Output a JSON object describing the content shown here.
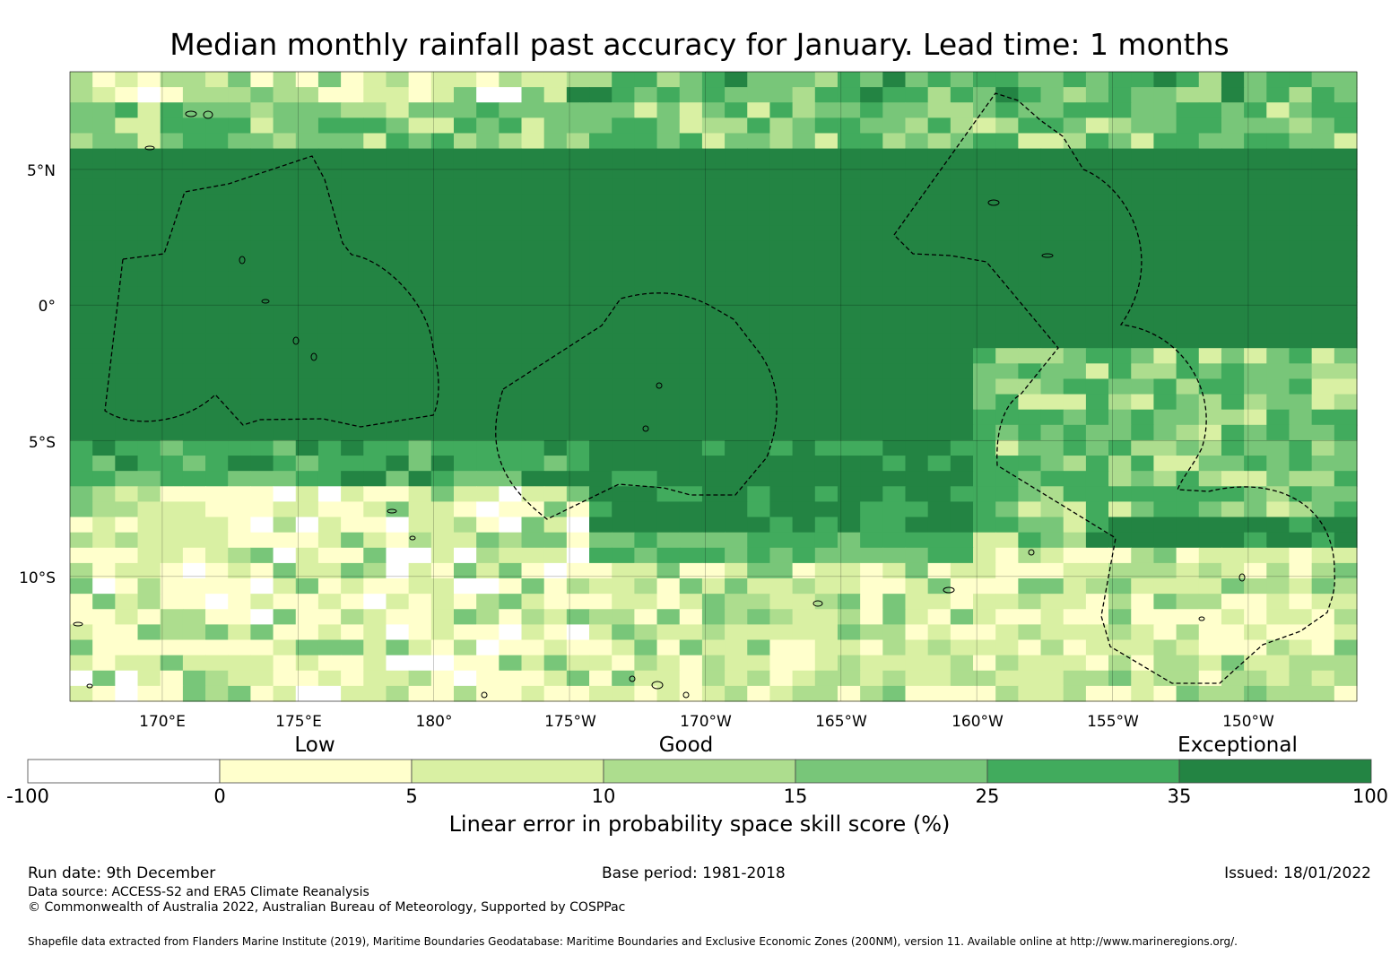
{
  "title": "Median monthly rainfall past accuracy for January. Lead time: 1 months",
  "map": {
    "lat_labels": [
      "5°N",
      "0°",
      "5°S",
      "10°S"
    ],
    "lon_labels": [
      "170°E",
      "175°E",
      "180°",
      "175°W",
      "170°W",
      "165°W",
      "160°W",
      "155°W",
      "150°W"
    ],
    "extent": {
      "lon_min": 166.6,
      "lon_max": 214.0,
      "lat_min": -14.6,
      "lat_max": 8.6
    }
  },
  "colorbar": {
    "categories": [
      "Low",
      "Good",
      "Exceptional"
    ],
    "ticks": [
      "-100",
      "0",
      "5",
      "10",
      "15",
      "25",
      "35",
      "100"
    ],
    "colors": [
      "#ffffff",
      "#ffffcc",
      "#d9f0a3",
      "#addd8e",
      "#78c679",
      "#41ab5d",
      "#238443"
    ],
    "title": "Linear error in probability space skill score (%)"
  },
  "footer": {
    "run_date": "Run date: 9th December",
    "base_period": "Base period: 1981-2018",
    "issued": "Issued: 18/01/2022",
    "data_source": "Data source: ACCESS-S2 and ERA5 Climate Reanalysis",
    "copyright": "© Commonwealth of Australia 2022, Australian Bureau of Meteorology, Supported by COSPPac",
    "shapefile": "Shapefile data extracted from Flanders Marine Institute (2019), Maritime Boundaries Geodatabase: Maritime Boundaries and Exclusive Economic Zones (200NM), version 11. Available online at http://www.marineregions.org/."
  }
}
